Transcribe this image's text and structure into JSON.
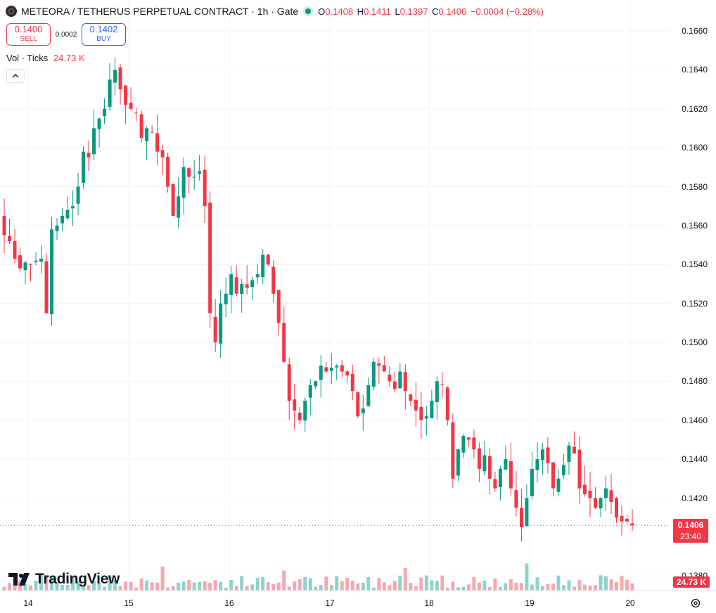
{
  "header": {
    "symbol": "METEORA / TETHERUS PERPETUAL CONTRACT · 1h · Gate",
    "ohlc": [
      {
        "key": "O",
        "value": "0.1408"
      },
      {
        "key": "H",
        "value": "0.1411"
      },
      {
        "key": "L",
        "value": "0.1397"
      },
      {
        "key": "C",
        "value": "0.1406"
      }
    ],
    "change": "−0.0004 (−0.28%)"
  },
  "trade": {
    "sell_price": "0.1400",
    "sell_label": "SELL",
    "spread": "0.0002",
    "buy_price": "0.1402",
    "buy_label": "BUY"
  },
  "volume_legend": {
    "label": "Vol · Ticks",
    "value": "24.73 K"
  },
  "price_tag": {
    "price": "0.1406",
    "countdown": "23:40"
  },
  "volume_tag": "24.73 K",
  "brand": "TradingView",
  "colors": {
    "up": "#089981",
    "down": "#f23645",
    "up_volume": "#8fd3c8",
    "down_volume": "#f5a8ae"
  },
  "chart_data": {
    "type": "candlestick",
    "interval": "1h",
    "y_axis_ticks": [
      "0.1660",
      "0.1640",
      "0.1620",
      "0.1600",
      "0.1580",
      "0.1560",
      "0.1540",
      "0.1520",
      "0.1500",
      "0.1480",
      "0.1460",
      "0.1440",
      "0.1420",
      "0.1380"
    ],
    "ylim": [
      0.1372,
      0.1668
    ],
    "x_axis_ticks": [
      "14",
      "15",
      "16",
      "17",
      "18",
      "19",
      "20"
    ],
    "last_price": 0.1406,
    "close_path": [
      0.1555,
      0.1552,
      0.1543,
      0.1538,
      0.1541,
      0.154,
      0.1542,
      0.1543,
      0.1515,
      0.1558,
      0.156,
      0.1565,
      0.1568,
      0.157,
      0.158,
      0.1598,
      0.1595,
      0.161,
      0.1615,
      0.162,
      0.1635,
      0.164,
      0.163,
      0.1622,
      0.162,
      0.1618,
      0.1605,
      0.161,
      0.1608,
      0.1598,
      0.1595,
      0.158,
      0.1565,
      0.1575,
      0.159,
      0.1585,
      0.1585,
      0.1588,
      0.157,
      0.1515,
      0.15,
      0.152,
      0.1525,
      0.1535,
      0.1525,
      0.153,
      0.1528,
      0.1532,
      0.1535,
      0.1545,
      0.154,
      0.1525,
      0.151,
      0.149,
      0.147,
      0.1465,
      0.146,
      0.147,
      0.1478,
      0.148,
      0.1488,
      0.1485,
      0.1487,
      0.1488,
      0.1485,
      0.1483,
      0.1475,
      0.1462,
      0.1466,
      0.1478,
      0.149,
      0.1488,
      0.1485,
      0.148,
      0.1476,
      0.1485,
      0.1475,
      0.147,
      0.1465,
      0.146,
      0.1462,
      0.147,
      0.148,
      0.1478,
      0.146,
      0.143,
      0.1445,
      0.1452,
      0.145,
      0.1445,
      0.1435,
      0.1442,
      0.143,
      0.1425,
      0.1435,
      0.144,
      0.1425,
      0.1415,
      0.1405,
      0.142,
      0.1435,
      0.144,
      0.1445,
      0.1438,
      0.1425,
      0.143,
      0.1437,
      0.1447,
      0.1443,
      0.1425,
      0.1422,
      0.142,
      0.1415,
      0.142,
      0.1425,
      0.1418,
      0.141,
      0.1408,
      0.1408,
      0.1406
    ]
  }
}
